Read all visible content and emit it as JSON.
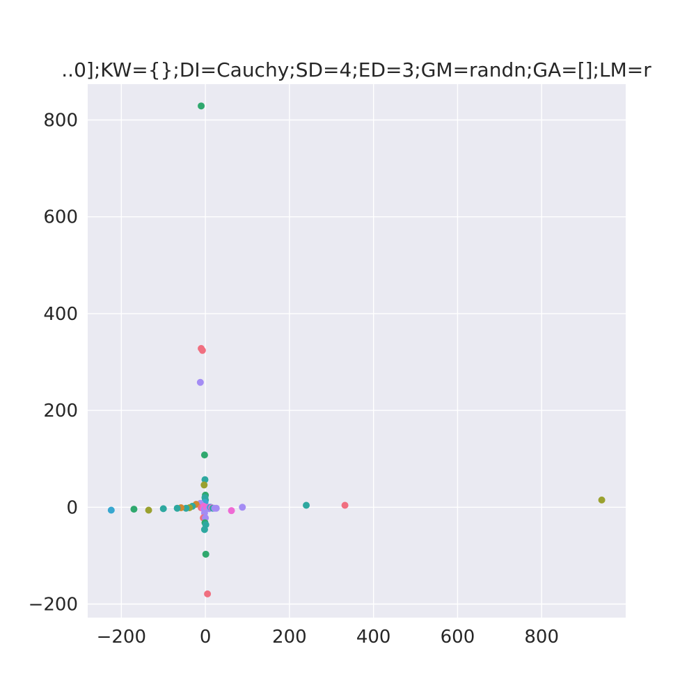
{
  "chart_data": {
    "type": "scatter",
    "title": "..0];KW={};DI=Cauchy;SD=4;ED=3;GM=randn;GA=[];LM=r",
    "xlabel": "",
    "ylabel": "",
    "xlim": [
      -280,
      1000
    ],
    "ylim": [
      -228,
      874
    ],
    "xticks": [
      -200,
      0,
      200,
      400,
      600,
      800
    ],
    "yticks": [
      -200,
      0,
      200,
      400,
      600,
      800
    ],
    "xtick_labels": [
      "−200",
      "0",
      "200",
      "400",
      "600",
      "800"
    ],
    "ytick_labels": [
      "−200",
      "0",
      "200",
      "400",
      "600",
      "800"
    ],
    "grid": true,
    "background": "#eaeaf2",
    "grid_color": "#ffffff",
    "points": [
      {
        "x": -10,
        "y": 829,
        "color": "#2fa86e"
      },
      {
        "x": -10,
        "y": 328,
        "color": "#f06f80"
      },
      {
        "x": -7,
        "y": 324,
        "color": "#f06f80"
      },
      {
        "x": -12,
        "y": 258,
        "color": "#a48cf4"
      },
      {
        "x": -2,
        "y": 108,
        "color": "#2fa86e"
      },
      {
        "x": -1,
        "y": 57,
        "color": "#2ea8a0"
      },
      {
        "x": -3,
        "y": 46,
        "color": "#9aa12f"
      },
      {
        "x": 0,
        "y": 25,
        "color": "#2fa86e"
      },
      {
        "x": -1,
        "y": 20,
        "color": "#2ea8a0"
      },
      {
        "x": 0,
        "y": 15,
        "color": "#2ea8a0"
      },
      {
        "x": -1,
        "y": 10,
        "color": "#38a7d0"
      },
      {
        "x": -12,
        "y": 8,
        "color": "#a48cf4"
      },
      {
        "x": -22,
        "y": 6,
        "color": "#d1872f"
      },
      {
        "x": -31,
        "y": 2,
        "color": "#2ea8a0"
      },
      {
        "x": -38,
        "y": -1,
        "color": "#9aa12f"
      },
      {
        "x": -46,
        "y": -2,
        "color": "#2ea8a0"
      },
      {
        "x": -58,
        "y": -1,
        "color": "#d1872f"
      },
      {
        "x": -67,
        "y": -2,
        "color": "#2ea8a0"
      },
      {
        "x": -100,
        "y": -3,
        "color": "#2ea8a0"
      },
      {
        "x": -135,
        "y": -6,
        "color": "#9aa12f"
      },
      {
        "x": -170,
        "y": -4,
        "color": "#2fa86e"
      },
      {
        "x": -224,
        "y": -6,
        "color": "#38a7d0"
      },
      {
        "x": -10,
        "y": -1,
        "color": "#f06f80"
      },
      {
        "x": -5,
        "y": -3,
        "color": "#ee6ad4"
      },
      {
        "x": -4,
        "y": 2,
        "color": "#ee6ad4"
      },
      {
        "x": -2,
        "y": -5,
        "color": "#a48cf4"
      },
      {
        "x": 3,
        "y": -2,
        "color": "#ee6ad4"
      },
      {
        "x": 6,
        "y": 0,
        "color": "#ee6ad4"
      },
      {
        "x": 9,
        "y": -3,
        "color": "#a48cf4"
      },
      {
        "x": 12,
        "y": 0,
        "color": "#38a7d0"
      },
      {
        "x": 15,
        "y": -1,
        "color": "#ee6ad4"
      },
      {
        "x": 18,
        "y": -2,
        "color": "#2ea8a0"
      },
      {
        "x": 22,
        "y": -2,
        "color": "#a48cf4"
      },
      {
        "x": 26,
        "y": -2,
        "color": "#a48cf4"
      },
      {
        "x": -2,
        "y": -12,
        "color": "#a48cf4"
      },
      {
        "x": -5,
        "y": -22,
        "color": "#f06f80"
      },
      {
        "x": 0,
        "y": -22,
        "color": "#a48cf4"
      },
      {
        "x": -1,
        "y": -32,
        "color": "#2fa86e"
      },
      {
        "x": 1,
        "y": -36,
        "color": "#2ea8a0"
      },
      {
        "x": -2,
        "y": -46,
        "color": "#2ea8a0"
      },
      {
        "x": 1,
        "y": -97,
        "color": "#2fa86e"
      },
      {
        "x": 5,
        "y": -179,
        "color": "#f06f80"
      },
      {
        "x": 62,
        "y": -7,
        "color": "#ee6ad4"
      },
      {
        "x": 88,
        "y": 0,
        "color": "#a48cf4"
      },
      {
        "x": 240,
        "y": 4,
        "color": "#2ea8a0"
      },
      {
        "x": 332,
        "y": 4,
        "color": "#f06f80"
      },
      {
        "x": 943,
        "y": 15,
        "color": "#9aa12f"
      }
    ]
  }
}
